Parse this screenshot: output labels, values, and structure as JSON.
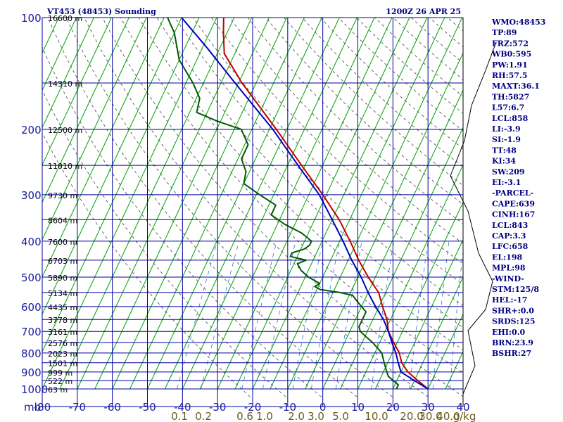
{
  "header": {
    "station": "VT453 (48453) Sounding",
    "time": "1200Z 26 APR 25"
  },
  "indices": [
    "WMO:48453",
    "TP:89",
    "FRZ:572",
    "WB0:595",
    "PW:1.91",
    "RH:57.5",
    "MAXT:36.1",
    "TH:5827",
    "L57:6.7",
    "LCL:858",
    "LI:-3.9",
    "SI:-1.9",
    "TT:48",
    "KI:34",
    "SW:209",
    "EI:-3.1",
    "-PARCEL-",
    "CAPE:639",
    "CINH:167",
    "LCL:843",
    "CAP:3.3",
    "LFC:658",
    "EL:198",
    "MPL:98",
    "-WIND-",
    "STM:125/8",
    "HEL:-17",
    "SHR+:0.0",
    "SRDS:125",
    "EHI:0.0",
    "BRN:23.9",
    "BSHR:27"
  ],
  "colors": {
    "frame": "#0000a0",
    "isotherm": "#00a000",
    "temperature": "#c00000",
    "dewpoint": "#005a00",
    "parcel": "#0000c0",
    "dry_adiabat": "#444444",
    "mixing_ratio": "#2a7ad8",
    "label": "#1a1aa0",
    "mixing_label": "#6e5a1a"
  },
  "chart_data": {
    "type": "line",
    "title": "VT453 (48453) Sounding",
    "x_axis": {
      "unit_label": "mb",
      "range": [
        -80,
        40
      ],
      "ticks": [
        -80,
        -70,
        -60,
        -50,
        -40,
        -30,
        -20,
        -10,
        0,
        10,
        20,
        30,
        40
      ],
      "tick_labels": [
        "-80",
        "-70",
        "-60",
        "-50",
        "-40",
        "-30",
        "-20",
        "-10",
        "0",
        "10",
        "20",
        "30",
        "40"
      ]
    },
    "y_axis": {
      "scale": "log",
      "range": [
        1000,
        100
      ],
      "ticks": [
        100,
        200,
        300,
        400,
        500,
        600,
        700,
        800,
        900,
        1000
      ],
      "tick_labels": [
        "100",
        "200",
        "300",
        "400",
        "500",
        "600",
        "700",
        "800",
        "900",
        "1000"
      ]
    },
    "height_labels": [
      {
        "p": 100,
        "text": "16600 m"
      },
      {
        "p": 150,
        "text": "14310 m"
      },
      {
        "p": 200,
        "text": "12500 m"
      },
      {
        "p": 250,
        "text": "11010 m"
      },
      {
        "p": 300,
        "text": "9730 m"
      },
      {
        "p": 350,
        "text": "8604 m"
      },
      {
        "p": 400,
        "text": "7600 m"
      },
      {
        "p": 450,
        "text": "6703 m"
      },
      {
        "p": 500,
        "text": "5890 m"
      },
      {
        "p": 550,
        "text": "5134 m"
      },
      {
        "p": 600,
        "text": "4435 m"
      },
      {
        "p": 650,
        "text": "3778 m"
      },
      {
        "p": 700,
        "text": "3161 m"
      },
      {
        "p": 750,
        "text": "2576 m"
      },
      {
        "p": 800,
        "text": "2023 m"
      },
      {
        "p": 850,
        "text": "1501 m"
      },
      {
        "p": 900,
        "text": "999 m"
      },
      {
        "p": 950,
        "text": "522 m"
      },
      {
        "p": 1000,
        "text": "63 m"
      }
    ],
    "mixing_ratio_labels": [
      "0.1",
      "0.2",
      "0.6",
      "1.0",
      "2.0",
      "3.0",
      "5.0",
      "10.0",
      "20.0",
      "30.0",
      "40.0",
      "g/kg"
    ],
    "series": [
      {
        "key": "temperature",
        "points": [
          [
            1000,
            30
          ],
          [
            950,
            26
          ],
          [
            900,
            22
          ],
          [
            850,
            19
          ],
          [
            800,
            17
          ],
          [
            750,
            14
          ],
          [
            700,
            11
          ],
          [
            650,
            9
          ],
          [
            600,
            6
          ],
          [
            550,
            3
          ],
          [
            500,
            -2
          ],
          [
            450,
            -7
          ],
          [
            400,
            -12
          ],
          [
            350,
            -18
          ],
          [
            300,
            -26
          ],
          [
            250,
            -36
          ],
          [
            200,
            -48
          ],
          [
            150,
            -64
          ],
          [
            125,
            -73
          ],
          [
            110,
            -76
          ],
          [
            100,
            -78
          ]
        ]
      },
      {
        "key": "dewpoint",
        "points": [
          [
            1000,
            21
          ],
          [
            975,
            21
          ],
          [
            950,
            19
          ],
          [
            925,
            17
          ],
          [
            900,
            16
          ],
          [
            875,
            15
          ],
          [
            850,
            14
          ],
          [
            800,
            12
          ],
          [
            750,
            8
          ],
          [
            720,
            5
          ],
          [
            700,
            3
          ],
          [
            680,
            2
          ],
          [
            650,
            2
          ],
          [
            620,
            2
          ],
          [
            600,
            0
          ],
          [
            580,
            -2
          ],
          [
            560,
            -4
          ],
          [
            550,
            -8
          ],
          [
            540,
            -14
          ],
          [
            530,
            -16
          ],
          [
            520,
            -15
          ],
          [
            500,
            -19
          ],
          [
            480,
            -22
          ],
          [
            460,
            -24
          ],
          [
            450,
            -22
          ],
          [
            440,
            -27
          ],
          [
            430,
            -27
          ],
          [
            420,
            -24
          ],
          [
            410,
            -23
          ],
          [
            400,
            -23
          ],
          [
            380,
            -27
          ],
          [
            360,
            -33
          ],
          [
            340,
            -38
          ],
          [
            320,
            -38
          ],
          [
            300,
            -44
          ],
          [
            280,
            -50
          ],
          [
            260,
            -51
          ],
          [
            240,
            -54
          ],
          [
            220,
            -54
          ],
          [
            200,
            -58
          ],
          [
            190,
            -66
          ],
          [
            180,
            -73
          ],
          [
            165,
            -74
          ],
          [
            150,
            -78
          ],
          [
            130,
            -85
          ],
          [
            110,
            -90
          ],
          [
            100,
            -94
          ]
        ]
      },
      {
        "key": "parcel",
        "points": [
          [
            1000,
            30
          ],
          [
            950,
            25
          ],
          [
            900,
            20
          ],
          [
            850,
            18
          ],
          [
            800,
            16
          ],
          [
            750,
            13.5
          ],
          [
            700,
            11
          ],
          [
            650,
            8
          ],
          [
            600,
            4
          ],
          [
            550,
            0
          ],
          [
            500,
            -4
          ],
          [
            450,
            -9
          ],
          [
            400,
            -14
          ],
          [
            350,
            -20
          ],
          [
            300,
            -27
          ],
          [
            250,
            -37
          ],
          [
            200,
            -49
          ],
          [
            150,
            -66
          ],
          [
            120,
            -79
          ],
          [
            100,
            -90
          ]
        ]
      }
    ],
    "legend": "none",
    "grid": true
  }
}
